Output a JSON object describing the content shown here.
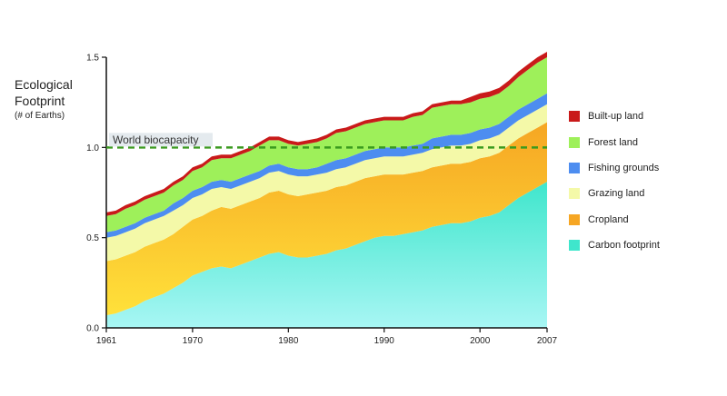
{
  "chart_data": {
    "type": "area",
    "stacked": true,
    "title": "",
    "ylabel": {
      "line1": "Ecological",
      "line2": "Footprint",
      "unit": "(# of Earths)"
    },
    "xlabel": "",
    "xlim": [
      1961,
      2007
    ],
    "ylim": [
      0,
      1.5
    ],
    "x_ticks": [
      "1961",
      "1970",
      "1980",
      "1990",
      "2000",
      "2007"
    ],
    "y_ticks": [
      "0.0",
      "0.5",
      "1.0",
      "1.5"
    ],
    "reference_line": {
      "label": "World biocapacity",
      "value": 1.0,
      "color": "#3a9a1e"
    },
    "legend_position": "right",
    "x": [
      1961,
      1962,
      1963,
      1964,
      1965,
      1966,
      1967,
      1968,
      1969,
      1970,
      1971,
      1972,
      1973,
      1974,
      1975,
      1976,
      1977,
      1978,
      1979,
      1980,
      1981,
      1982,
      1983,
      1984,
      1985,
      1986,
      1987,
      1988,
      1989,
      1990,
      1991,
      1992,
      1993,
      1994,
      1995,
      1996,
      1997,
      1998,
      1999,
      2000,
      2001,
      2002,
      2003,
      2004,
      2005,
      2006,
      2007
    ],
    "series": [
      {
        "name": "Carbon footprint",
        "colors": [
          "#a8f6f4",
          "#3fe6cc"
        ],
        "values": [
          0.07,
          0.08,
          0.1,
          0.12,
          0.15,
          0.17,
          0.19,
          0.22,
          0.25,
          0.29,
          0.31,
          0.33,
          0.34,
          0.33,
          0.35,
          0.37,
          0.39,
          0.41,
          0.42,
          0.4,
          0.39,
          0.39,
          0.4,
          0.41,
          0.43,
          0.44,
          0.46,
          0.48,
          0.5,
          0.51,
          0.51,
          0.52,
          0.53,
          0.54,
          0.56,
          0.57,
          0.58,
          0.58,
          0.59,
          0.61,
          0.62,
          0.64,
          0.68,
          0.72,
          0.75,
          0.78,
          0.81
        ]
      },
      {
        "name": "Cropland",
        "colors": [
          "#ffe13a",
          "#f6a623"
        ],
        "values": [
          0.3,
          0.3,
          0.3,
          0.3,
          0.3,
          0.3,
          0.3,
          0.3,
          0.31,
          0.31,
          0.31,
          0.32,
          0.33,
          0.33,
          0.33,
          0.33,
          0.33,
          0.34,
          0.34,
          0.34,
          0.34,
          0.35,
          0.35,
          0.35,
          0.35,
          0.35,
          0.35,
          0.35,
          0.34,
          0.34,
          0.34,
          0.33,
          0.33,
          0.33,
          0.33,
          0.33,
          0.33,
          0.33,
          0.33,
          0.33,
          0.33,
          0.33,
          0.33,
          0.33,
          0.33,
          0.33,
          0.33
        ]
      },
      {
        "name": "Grazing land",
        "colors": [
          "#f4f9a8",
          "#f4f9a8"
        ],
        "values": [
          0.13,
          0.13,
          0.13,
          0.13,
          0.13,
          0.13,
          0.13,
          0.13,
          0.12,
          0.12,
          0.12,
          0.12,
          0.11,
          0.11,
          0.11,
          0.11,
          0.11,
          0.11,
          0.11,
          0.11,
          0.11,
          0.1,
          0.1,
          0.1,
          0.1,
          0.1,
          0.1,
          0.1,
          0.1,
          0.1,
          0.1,
          0.1,
          0.1,
          0.1,
          0.1,
          0.1,
          0.1,
          0.1,
          0.1,
          0.1,
          0.1,
          0.1,
          0.1,
          0.1,
          0.1,
          0.1,
          0.1
        ]
      },
      {
        "name": "Fishing grounds",
        "colors": [
          "#4d8df0",
          "#4d8df0"
        ],
        "values": [
          0.03,
          0.03,
          0.03,
          0.03,
          0.03,
          0.03,
          0.03,
          0.04,
          0.04,
          0.04,
          0.04,
          0.04,
          0.04,
          0.04,
          0.04,
          0.04,
          0.04,
          0.04,
          0.04,
          0.04,
          0.04,
          0.04,
          0.04,
          0.05,
          0.05,
          0.05,
          0.05,
          0.05,
          0.05,
          0.05,
          0.05,
          0.05,
          0.05,
          0.05,
          0.06,
          0.06,
          0.06,
          0.06,
          0.06,
          0.06,
          0.06,
          0.06,
          0.06,
          0.06,
          0.06,
          0.06,
          0.06
        ]
      },
      {
        "name": "Forest land",
        "colors": [
          "#9ef05a",
          "#9ef05a"
        ],
        "values": [
          0.09,
          0.09,
          0.1,
          0.1,
          0.1,
          0.1,
          0.1,
          0.1,
          0.1,
          0.11,
          0.11,
          0.12,
          0.12,
          0.13,
          0.13,
          0.13,
          0.14,
          0.14,
          0.13,
          0.13,
          0.13,
          0.14,
          0.14,
          0.14,
          0.15,
          0.15,
          0.15,
          0.15,
          0.15,
          0.15,
          0.15,
          0.15,
          0.16,
          0.16,
          0.17,
          0.17,
          0.17,
          0.17,
          0.17,
          0.17,
          0.17,
          0.17,
          0.17,
          0.18,
          0.19,
          0.2,
          0.2
        ]
      },
      {
        "name": "Built-up land",
        "colors": [
          "#c91a1a",
          "#c91a1a"
        ],
        "values": [
          0.02,
          0.02,
          0.02,
          0.02,
          0.02,
          0.02,
          0.02,
          0.02,
          0.02,
          0.02,
          0.02,
          0.02,
          0.02,
          0.02,
          0.02,
          0.02,
          0.02,
          0.02,
          0.02,
          0.02,
          0.02,
          0.02,
          0.02,
          0.02,
          0.02,
          0.02,
          0.02,
          0.02,
          0.02,
          0.02,
          0.02,
          0.02,
          0.02,
          0.02,
          0.02,
          0.02,
          0.02,
          0.02,
          0.03,
          0.03,
          0.03,
          0.03,
          0.03,
          0.03,
          0.03,
          0.03,
          0.03
        ]
      }
    ],
    "legend": [
      {
        "label": "Built-up land",
        "color": "#c91a1a"
      },
      {
        "label": "Forest land",
        "color": "#9ef05a"
      },
      {
        "label": "Fishing grounds",
        "color": "#4d8df0"
      },
      {
        "label": "Grazing land",
        "color": "#f4f9a8"
      },
      {
        "label": "Cropland",
        "color": "#f6a623"
      },
      {
        "label": "Carbon footprint",
        "color": "#3fe6cc"
      }
    ]
  }
}
